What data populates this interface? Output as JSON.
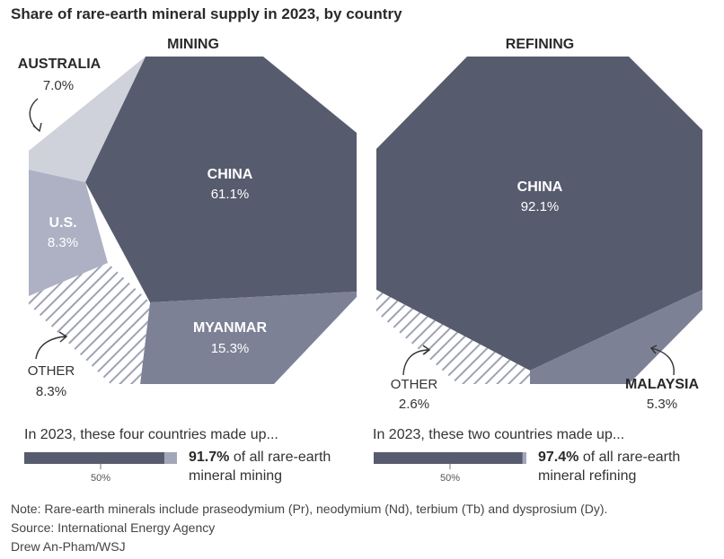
{
  "title": "Share of rare-earth mineral supply in 2023, by country",
  "chart_data": [
    {
      "type": "pie",
      "title": "MINING",
      "categories": [
        "CHINA",
        "MYANMAR",
        "OTHER",
        "U.S.",
        "AUSTRALIA"
      ],
      "labels": [
        "CHINA",
        "MYANMAR",
        "OTHER",
        "U.S.",
        "AUSTRALIA"
      ],
      "display_values": [
        "61.1%",
        "15.3%",
        "8.3%",
        "8.3%",
        "7.0%"
      ],
      "values": [
        61.1,
        15.3,
        8.3,
        8.3,
        7.0
      ],
      "colors": [
        "#575b6e",
        "#7d8196",
        "hatch",
        "#aeb1c4",
        "#cfd1db"
      ]
    },
    {
      "type": "pie",
      "title": "REFINING",
      "categories": [
        "CHINA",
        "MALAYSIA",
        "OTHER"
      ],
      "labels": [
        "CHINA",
        "MALAYSIA",
        "OTHER"
      ],
      "display_values": [
        "92.1%",
        "5.3%",
        "2.6%"
      ],
      "values": [
        92.1,
        5.3,
        2.6
      ],
      "colors": [
        "#575b6e",
        "#7d8196",
        "hatch"
      ]
    }
  ],
  "summaries": [
    {
      "text": "In 2023, these four countries made up...",
      "pct": "91.7%",
      "rest1": " of all rare-earth",
      "rest2": "mineral mining",
      "value": 91.7,
      "tick": "50%"
    },
    {
      "text": "In 2023, these two countries made up...",
      "pct": "97.4%",
      "rest1": " of all rare-earth",
      "rest2": "mineral refining",
      "value": 97.4,
      "tick": "50%"
    }
  ],
  "notes": {
    "note": "Note:  Rare-earth minerals include praseodymium (Pr), neodymium (Nd), terbium (Tb) and dysprosium (Dy).",
    "source": "Source: International Energy Agency",
    "credit": "Drew An-Pham/WSJ"
  },
  "colors": {
    "dark": "#575b6e",
    "mid": "#7d8196",
    "light": "#aeb1c4",
    "lightest": "#cfd1db",
    "bar_rest": "#a3a6b6"
  }
}
